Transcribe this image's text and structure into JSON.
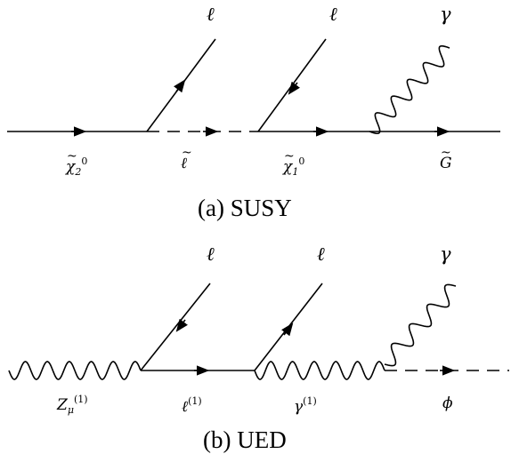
{
  "susy": {
    "caption": "(a) SUSY",
    "top_labels": {
      "lepton1": "ℓ",
      "lepton2": "ℓ",
      "photon": "γ"
    },
    "bottom_labels": {
      "neutralino2": {
        "base": "χ",
        "sub": "2",
        "sup": "0"
      },
      "slepton": {
        "base": "ℓ"
      },
      "neutralino1": {
        "base": "χ",
        "sub": "1",
        "sup": "0"
      },
      "gravitino": {
        "base": "G"
      }
    }
  },
  "ued": {
    "caption": "(b) UED",
    "top_labels": {
      "lepton1": "ℓ",
      "lepton2": "ℓ",
      "photon": "γ"
    },
    "bottom_labels": {
      "z1": {
        "base": "Z",
        "sub": "μ",
        "sup": "(1)"
      },
      "lepton_kk": {
        "base": "ℓ",
        "sup": "(1)"
      },
      "photon_kk": {
        "base": "γ",
        "sup": "(1)"
      },
      "phi": {
        "base": "ϕ"
      }
    }
  }
}
